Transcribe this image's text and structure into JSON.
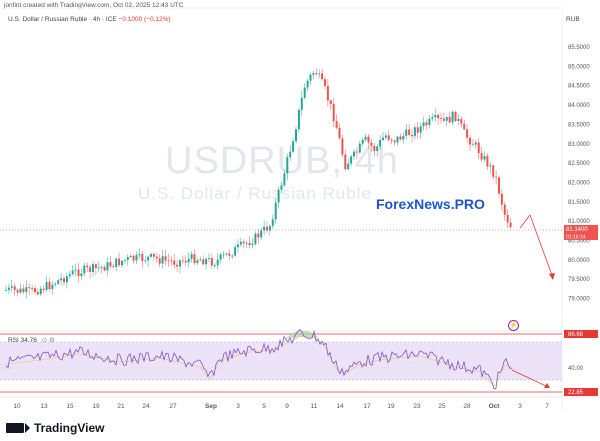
{
  "header": {
    "created_by": "jonfint created with TradingView.com, Oct 02, 2025 12:43 UTC",
    "symbol_line": "U.S. Dollar / Russian Ruble · 4h · ICE",
    "change": "−0.1000 (−0.12%)",
    "currency": "RUB"
  },
  "watermark": {
    "ticker": "USDRUB, 4h",
    "name": "U.S. Dollar / Russian Ruble"
  },
  "brand": "ForexNews.PRO",
  "rsi": {
    "label": "RSI 34.76",
    "level_high": "86.68",
    "level_mid": "40.00",
    "level_low": "22.85"
  },
  "price_axis": {
    "ticks": [
      "85.5000",
      "85.0000",
      "84.5000",
      "84.0000",
      "83.5000",
      "83.0000",
      "82.5000",
      "82.0000",
      "81.5000",
      "81.0000",
      "80.5000",
      "80.0000",
      "79.5000",
      "79.0000"
    ],
    "last_price": "81.1400",
    "countdown": "01:16:14"
  },
  "time_axis": {
    "ticks": [
      "10",
      "13",
      "15",
      "19",
      "21",
      "24",
      "27",
      "Sep",
      "3",
      "5",
      "9",
      "11",
      "14",
      "17",
      "19",
      "23",
      "25",
      "28",
      "Oct",
      "3",
      "7"
    ]
  },
  "footer": {
    "text": "TradingView"
  },
  "colors": {
    "up": "#26a69a",
    "down": "#ef5350",
    "rsi_line": "#7e57c2",
    "rsi_band": "#e9ddf7",
    "level_line": "#e53935",
    "projection": "#e53935",
    "brand": "#1e56c8"
  }
}
